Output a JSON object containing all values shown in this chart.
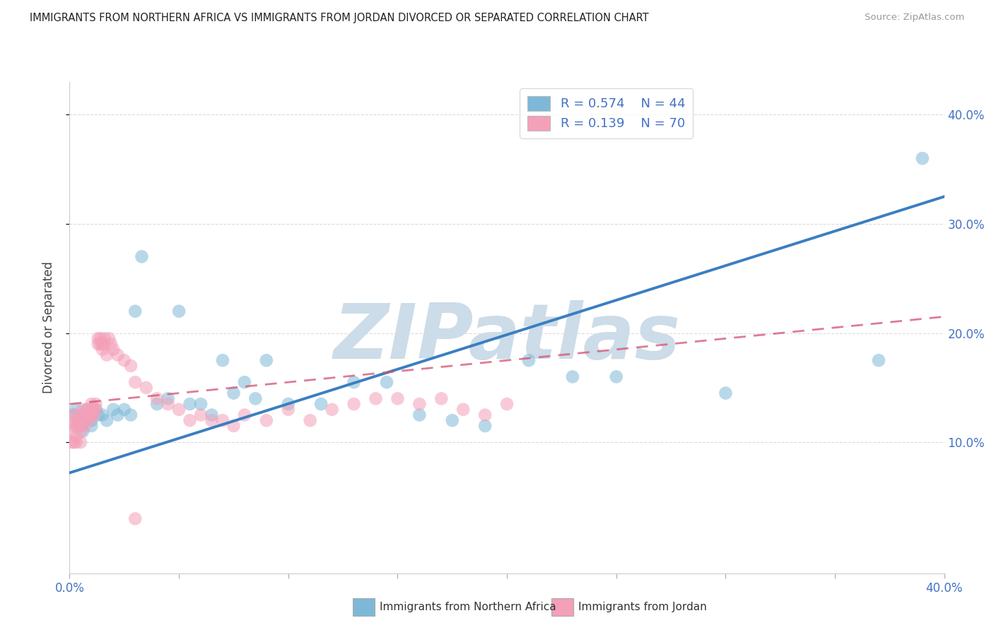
{
  "title": "IMMIGRANTS FROM NORTHERN AFRICA VS IMMIGRANTS FROM JORDAN DIVORCED OR SEPARATED CORRELATION CHART",
  "source": "Source: ZipAtlas.com",
  "ylabel": "Divorced or Separated",
  "xlim": [
    0.0,
    0.4
  ],
  "ylim": [
    -0.02,
    0.43
  ],
  "yticks_right": [
    0.1,
    0.2,
    0.3,
    0.4
  ],
  "ytick_labels_right": [
    "10.0%",
    "20.0%",
    "30.0%",
    "40.0%"
  ],
  "legend_r1": "R = 0.574",
  "legend_n1": "N = 44",
  "legend_r2": "R = 0.139",
  "legend_n2": "N = 70",
  "blue_color": "#7eb8d8",
  "pink_color": "#f4a0b8",
  "blue_line_color": "#3a7fc1",
  "pink_line_color": "#d45070",
  "watermark": "ZIPatlas",
  "watermark_color": "#ccdce8",
  "blue_scatter_x": [
    0.002,
    0.003,
    0.004,
    0.005,
    0.006,
    0.007,
    0.008,
    0.009,
    0.01,
    0.01,
    0.012,
    0.013,
    0.015,
    0.017,
    0.02,
    0.022,
    0.025,
    0.028,
    0.03,
    0.033,
    0.04,
    0.045,
    0.05,
    0.055,
    0.06,
    0.065,
    0.07,
    0.075,
    0.08,
    0.085,
    0.09,
    0.1,
    0.115,
    0.13,
    0.145,
    0.16,
    0.175,
    0.19,
    0.21,
    0.23,
    0.25,
    0.3,
    0.37,
    0.39
  ],
  "blue_scatter_y": [
    0.125,
    0.13,
    0.12,
    0.115,
    0.11,
    0.12,
    0.13,
    0.125,
    0.115,
    0.12,
    0.13,
    0.125,
    0.125,
    0.12,
    0.13,
    0.125,
    0.13,
    0.125,
    0.22,
    0.27,
    0.135,
    0.14,
    0.22,
    0.135,
    0.135,
    0.125,
    0.175,
    0.145,
    0.155,
    0.14,
    0.175,
    0.135,
    0.135,
    0.155,
    0.155,
    0.125,
    0.12,
    0.115,
    0.175,
    0.16,
    0.16,
    0.145,
    0.175,
    0.36
  ],
  "pink_scatter_x": [
    0.001,
    0.001,
    0.001,
    0.002,
    0.002,
    0.002,
    0.003,
    0.003,
    0.003,
    0.004,
    0.004,
    0.005,
    0.005,
    0.005,
    0.005,
    0.005,
    0.006,
    0.006,
    0.007,
    0.007,
    0.008,
    0.008,
    0.009,
    0.009,
    0.01,
    0.01,
    0.01,
    0.011,
    0.011,
    0.012,
    0.012,
    0.013,
    0.013,
    0.014,
    0.014,
    0.015,
    0.015,
    0.016,
    0.016,
    0.017,
    0.018,
    0.019,
    0.02,
    0.022,
    0.025,
    0.028,
    0.03,
    0.035,
    0.04,
    0.045,
    0.05,
    0.055,
    0.06,
    0.065,
    0.07,
    0.075,
    0.08,
    0.09,
    0.1,
    0.11,
    0.12,
    0.13,
    0.14,
    0.15,
    0.16,
    0.17,
    0.18,
    0.19,
    0.2,
    0.03
  ],
  "pink_scatter_y": [
    0.12,
    0.11,
    0.1,
    0.125,
    0.115,
    0.1,
    0.115,
    0.105,
    0.1,
    0.12,
    0.115,
    0.125,
    0.12,
    0.115,
    0.11,
    0.1,
    0.13,
    0.125,
    0.12,
    0.115,
    0.13,
    0.125,
    0.125,
    0.12,
    0.135,
    0.13,
    0.125,
    0.13,
    0.125,
    0.135,
    0.13,
    0.19,
    0.195,
    0.195,
    0.19,
    0.185,
    0.19,
    0.195,
    0.19,
    0.18,
    0.195,
    0.19,
    0.185,
    0.18,
    0.175,
    0.17,
    0.155,
    0.15,
    0.14,
    0.135,
    0.13,
    0.12,
    0.125,
    0.12,
    0.12,
    0.115,
    0.125,
    0.12,
    0.13,
    0.12,
    0.13,
    0.135,
    0.14,
    0.14,
    0.135,
    0.14,
    0.13,
    0.125,
    0.135,
    0.03
  ],
  "blue_trend_x": [
    0.0,
    0.4
  ],
  "blue_trend_y": [
    0.072,
    0.325
  ],
  "pink_trend_x": [
    0.0,
    0.4
  ],
  "pink_trend_y": [
    0.135,
    0.215
  ],
  "grid_color": "#d8d8d8",
  "background_color": "#ffffff"
}
